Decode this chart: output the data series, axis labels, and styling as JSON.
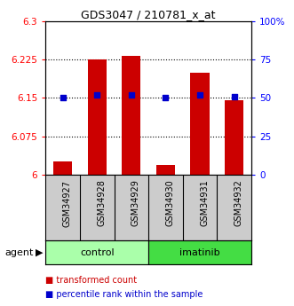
{
  "title": "GDS3047 / 210781_x_at",
  "categories": [
    "GSM34927",
    "GSM34928",
    "GSM34929",
    "GSM34930",
    "GSM34931",
    "GSM34932"
  ],
  "bar_values": [
    6.025,
    6.225,
    6.232,
    6.018,
    6.2,
    6.145
  ],
  "dot_values": [
    50,
    52,
    52,
    50,
    52,
    51
  ],
  "ylim_left": [
    6.0,
    6.3
  ],
  "ylim_right": [
    0,
    100
  ],
  "yticks_left": [
    6.0,
    6.075,
    6.15,
    6.225,
    6.3
  ],
  "yticks_right": [
    0,
    25,
    50,
    75,
    100
  ],
  "ytick_labels_left": [
    "6",
    "6.075",
    "6.15",
    "6.225",
    "6.3"
  ],
  "ytick_labels_right": [
    "0",
    "25",
    "50",
    "75",
    "100%"
  ],
  "gridlines": [
    6.075,
    6.15,
    6.225
  ],
  "groups": [
    {
      "label": "control",
      "indices": [
        0,
        1,
        2
      ],
      "color": "#AAFFAA"
    },
    {
      "label": "imatinib",
      "indices": [
        3,
        4,
        5
      ],
      "color": "#44DD44"
    }
  ],
  "bar_color": "#CC0000",
  "dot_color": "#0000CC",
  "bar_bottom": 6.0,
  "legend_items": [
    {
      "label": "transformed count",
      "color": "#CC0000"
    },
    {
      "label": "percentile rank within the sample",
      "color": "#0000CC"
    }
  ],
  "agent_label": "agent",
  "xlabel_gray_bg": "#CCCCCC"
}
